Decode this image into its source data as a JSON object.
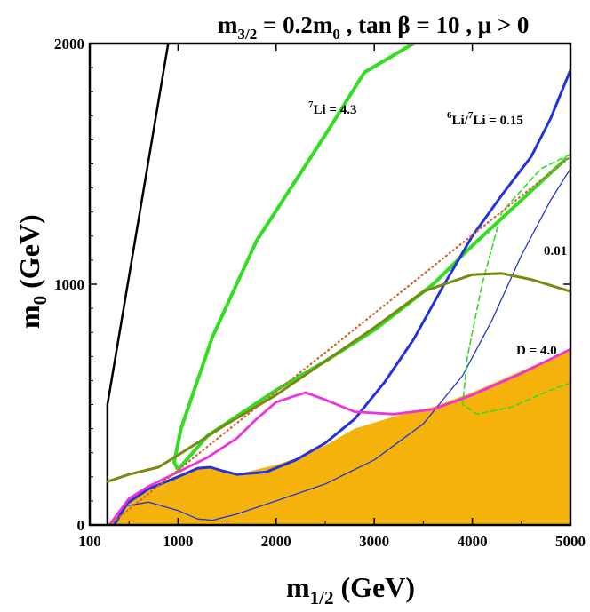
{
  "chart_data": {
    "type": "line",
    "title": {
      "main": "m",
      "sub": "3/2",
      "rest": " = 0.2m",
      "sub2": "0",
      "tail": " , tan β = 10 ,  μ > 0"
    },
    "xlabel": {
      "main": "m",
      "sub": "1/2",
      "unit": " (GeV)"
    },
    "ylabel": {
      "main": "m",
      "sub": "0",
      "unit": " (GeV)"
    },
    "xlim": [
      100,
      5000
    ],
    "ylim": [
      0,
      2000
    ],
    "x_ticks": [
      100,
      1000,
      2000,
      3000,
      4000,
      5000
    ],
    "x_tick_labels": [
      "100",
      "1000",
      "2000",
      "3000",
      "4000",
      "5000"
    ],
    "y_ticks": [
      0,
      1000,
      2000
    ],
    "y_tick_labels": [
      "0",
      "1000",
      "2000"
    ],
    "colors": {
      "excluded_region": "#f5b20a",
      "li7": "#33dd22",
      "li6": "#2233dd",
      "deuterium": "#ee33dd",
      "olive": "#7a8a10",
      "dotted": "#cc6633",
      "black": "#000000"
    },
    "annotations": {
      "li7": {
        "sup": "7",
        "text": "Li = 4.3"
      },
      "li6": {
        "sup": "6",
        "mid": "Li/",
        "sup2": "7",
        "text": "Li = 0.15"
      },
      "li6b": {
        "text": "0.01"
      },
      "d": {
        "text": "D = 4.0"
      }
    },
    "series": [
      {
        "name": "excluded-region",
        "kind": "fill",
        "color": "#f5b20a",
        "x": [
          300,
          500,
          700,
          1000,
          1200,
          1300,
          1450,
          1600,
          2000,
          2300,
          2500,
          2800,
          3200,
          3600,
          4000,
          4500,
          5000,
          5000
        ],
        "y": [
          0,
          110,
          150,
          200,
          240,
          245,
          225,
          210,
          250,
          290,
          330,
          400,
          450,
          490,
          550,
          640,
          730,
          0
        ]
      },
      {
        "name": "black-line",
        "kind": "line",
        "color": "#000000",
        "width": 2.5,
        "x": [
          280,
          280,
          900
        ],
        "y": [
          0,
          500,
          2000
        ]
      },
      {
        "name": "li7-4.3",
        "kind": "line",
        "color": "#33dd22",
        "width": 4,
        "x": [
          4950,
          4000,
          3600,
          3000,
          2500,
          2000,
          1300,
          1000,
          960,
          1030,
          1350,
          1800,
          2500,
          2900,
          3400
        ],
        "y": [
          1520,
          1160,
          1000,
          810,
          680,
          560,
          370,
          230,
          260,
          400,
          780,
          1180,
          1620,
          1880,
          2000
        ]
      },
      {
        "name": "li6-0.15-thick",
        "kind": "line",
        "color": "#2233dd",
        "width": 3,
        "x": [
          350,
          480,
          700,
          1000,
          1200,
          1330,
          1450,
          1600,
          1900,
          2200,
          2500,
          2800,
          3100,
          3400,
          3700,
          4000,
          4300,
          4600,
          4800,
          5000
        ],
        "y": [
          0,
          90,
          150,
          200,
          235,
          240,
          225,
          210,
          220,
          270,
          340,
          440,
          590,
          770,
          990,
          1200,
          1370,
          1530,
          1690,
          1890
        ]
      },
      {
        "name": "li6-0.01-thin",
        "kind": "line",
        "color": "#2233dd",
        "width": 1.3,
        "x": [
          480,
          700,
          1000,
          1200,
          1350,
          1600,
          2000,
          2500,
          3000,
          3500,
          3900,
          4200,
          4500,
          4800,
          5000
        ],
        "y": [
          80,
          95,
          60,
          25,
          20,
          45,
          100,
          170,
          270,
          420,
          620,
          850,
          1120,
          1350,
          1480
        ]
      },
      {
        "name": "dashed-green",
        "kind": "line",
        "color": "#33dd22",
        "width": 1.6,
        "dash": "6,4",
        "x": [
          5000,
          4700,
          4300,
          4100,
          3950,
          3900,
          4050,
          4400,
          4800,
          5000
        ],
        "y": [
          1540,
          1480,
          1300,
          1000,
          700,
          500,
          460,
          490,
          560,
          590
        ]
      },
      {
        "name": "deuterium-4.0",
        "kind": "line",
        "color": "#ee33dd",
        "width": 2.8,
        "x": [
          300,
          500,
          700,
          1000,
          1300,
          1600,
          1800,
          2000,
          2300,
          2500,
          2800,
          3200,
          3600,
          4000,
          4500,
          5000
        ],
        "y": [
          0,
          110,
          160,
          220,
          280,
          360,
          440,
          510,
          550,
          520,
          470,
          460,
          480,
          540,
          630,
          730
        ]
      },
      {
        "name": "olive-curve",
        "kind": "line",
        "color": "#7a8a10",
        "width": 3,
        "x": [
          280,
          500,
          800,
          1000,
          1500,
          2000,
          2500,
          3000,
          3500,
          4000,
          4300,
          4600,
          5000
        ],
        "y": [
          180,
          210,
          240,
          290,
          420,
          540,
          680,
          820,
          970,
          1040,
          1045,
          1020,
          970
        ]
      },
      {
        "name": "dotted-line",
        "kind": "line",
        "color": "#cc6633",
        "width": 2.2,
        "dash": "1,4",
        "x": [
          300,
          5000
        ],
        "y": [
          0,
          1530
        ]
      }
    ]
  }
}
